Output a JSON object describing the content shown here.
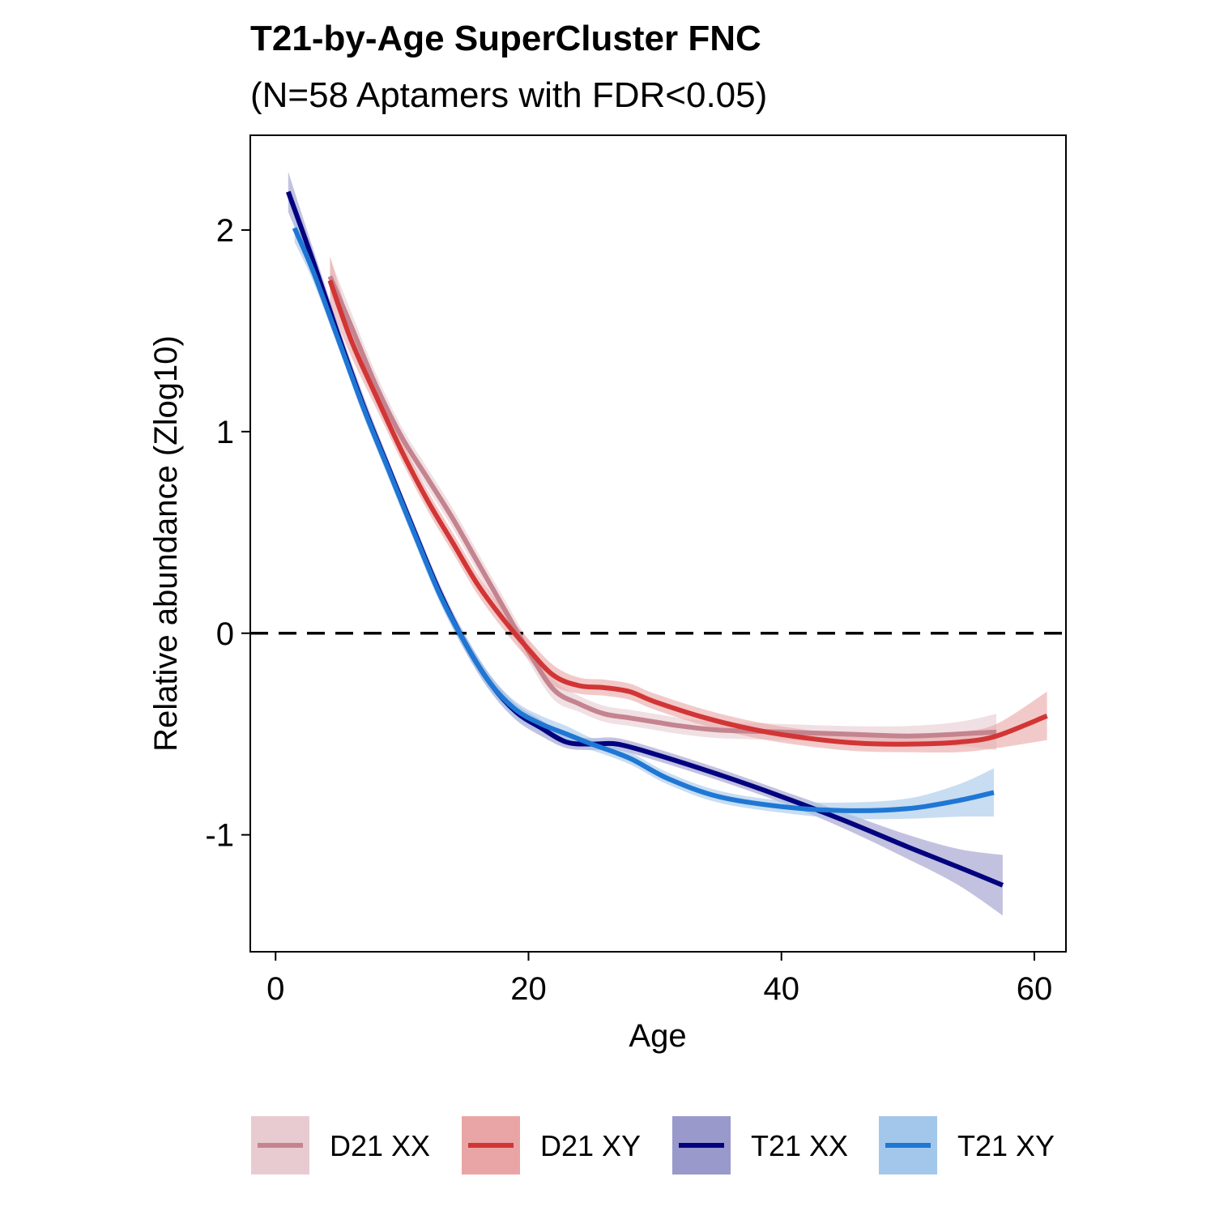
{
  "chart_data": {
    "type": "line",
    "title": "T21-by-Age SuperCluster FNC",
    "subtitle": "(N=58 Aptamers with FDR<0.05)",
    "xlabel": "Age",
    "ylabel": "Relative abundance (Zlog10)",
    "xlim": [
      -2,
      62.5
    ],
    "ylim": [
      -1.58,
      2.47
    ],
    "xticks": [
      0,
      20,
      40,
      60
    ],
    "xtick_labels": [
      "0",
      "20",
      "40",
      "60"
    ],
    "yticks": [
      -1,
      0,
      1,
      2
    ],
    "ytick_labels": [
      "-1",
      "0",
      "1",
      "2"
    ],
    "reference_line": {
      "y": 0,
      "style": "dashed"
    },
    "grid": false,
    "legend_position": "bottom",
    "series": [
      {
        "name": "D21 XX",
        "color": "#c4848f",
        "band_color": "#e8cbd1",
        "points": [
          [
            4.3,
            1.77,
            0.09
          ],
          [
            6,
            1.52,
            0.07
          ],
          [
            8,
            1.22,
            0.06
          ],
          [
            10,
            0.97,
            0.05
          ],
          [
            12,
            0.77,
            0.05
          ],
          [
            14,
            0.57,
            0.05
          ],
          [
            16,
            0.35,
            0.05
          ],
          [
            18,
            0.13,
            0.05
          ],
          [
            20,
            -0.09,
            0.05
          ],
          [
            22,
            -0.28,
            0.05
          ],
          [
            24,
            -0.35,
            0.04
          ],
          [
            26,
            -0.4,
            0.04
          ],
          [
            28,
            -0.42,
            0.04
          ],
          [
            30,
            -0.44,
            0.04
          ],
          [
            32,
            -0.46,
            0.04
          ],
          [
            35,
            -0.48,
            0.04
          ],
          [
            40,
            -0.49,
            0.04
          ],
          [
            45,
            -0.5,
            0.04
          ],
          [
            50,
            -0.51,
            0.05
          ],
          [
            54,
            -0.5,
            0.06
          ],
          [
            57,
            -0.49,
            0.09
          ]
        ]
      },
      {
        "name": "D21 XY",
        "color": "#d23535",
        "band_color": "#e9a5a5",
        "points": [
          [
            4.3,
            1.75,
            0.12
          ],
          [
            6,
            1.45,
            0.08
          ],
          [
            8,
            1.17,
            0.06
          ],
          [
            10,
            0.9,
            0.05
          ],
          [
            12,
            0.66,
            0.05
          ],
          [
            14,
            0.45,
            0.05
          ],
          [
            16,
            0.24,
            0.05
          ],
          [
            18,
            0.07,
            0.05
          ],
          [
            20,
            -0.08,
            0.05
          ],
          [
            22,
            -0.21,
            0.05
          ],
          [
            24,
            -0.26,
            0.04
          ],
          [
            26,
            -0.27,
            0.04
          ],
          [
            28,
            -0.29,
            0.04
          ],
          [
            30,
            -0.34,
            0.04
          ],
          [
            34,
            -0.42,
            0.04
          ],
          [
            38,
            -0.48,
            0.04
          ],
          [
            42,
            -0.52,
            0.04
          ],
          [
            46,
            -0.545,
            0.04
          ],
          [
            50,
            -0.55,
            0.04
          ],
          [
            54,
            -0.54,
            0.05
          ],
          [
            57,
            -0.51,
            0.06
          ],
          [
            61,
            -0.41,
            0.12
          ]
        ]
      },
      {
        "name": "T21 XX",
        "color": "#03037f",
        "band_color": "#9999cc",
        "points": [
          [
            1,
            2.19,
            0.1
          ],
          [
            3,
            1.84,
            0.06
          ],
          [
            5,
            1.47,
            0.05
          ],
          [
            7,
            1.12,
            0.05
          ],
          [
            9,
            0.81,
            0.04
          ],
          [
            11,
            0.5,
            0.04
          ],
          [
            13,
            0.2,
            0.04
          ],
          [
            15,
            -0.05,
            0.04
          ],
          [
            17,
            -0.25,
            0.04
          ],
          [
            19,
            -0.39,
            0.04
          ],
          [
            21,
            -0.47,
            0.04
          ],
          [
            23,
            -0.54,
            0.03
          ],
          [
            25,
            -0.55,
            0.03
          ],
          [
            27,
            -0.55,
            0.03
          ],
          [
            30,
            -0.6,
            0.03
          ],
          [
            35,
            -0.7,
            0.03
          ],
          [
            40,
            -0.81,
            0.03
          ],
          [
            45,
            -0.93,
            0.04
          ],
          [
            50,
            -1.06,
            0.06
          ],
          [
            54,
            -1.16,
            0.09
          ],
          [
            57.5,
            -1.25,
            0.15
          ]
        ]
      },
      {
        "name": "T21 XY",
        "color": "#1f77d4",
        "band_color": "#a3c7ea",
        "points": [
          [
            1.5,
            2.01,
            0.07
          ],
          [
            3,
            1.79,
            0.05
          ],
          [
            5,
            1.45,
            0.04
          ],
          [
            7,
            1.11,
            0.04
          ],
          [
            9,
            0.8,
            0.04
          ],
          [
            11,
            0.49,
            0.04
          ],
          [
            13,
            0.19,
            0.04
          ],
          [
            15,
            -0.05,
            0.04
          ],
          [
            17,
            -0.25,
            0.04
          ],
          [
            19,
            -0.38,
            0.04
          ],
          [
            21,
            -0.45,
            0.04
          ],
          [
            23,
            -0.5,
            0.04
          ],
          [
            25,
            -0.55,
            0.03
          ],
          [
            28,
            -0.62,
            0.03
          ],
          [
            31,
            -0.72,
            0.03
          ],
          [
            35,
            -0.81,
            0.03
          ],
          [
            40,
            -0.86,
            0.03
          ],
          [
            45,
            -0.88,
            0.04
          ],
          [
            50,
            -0.87,
            0.05
          ],
          [
            54,
            -0.83,
            0.08
          ],
          [
            56.8,
            -0.79,
            0.12
          ]
        ]
      }
    ]
  }
}
